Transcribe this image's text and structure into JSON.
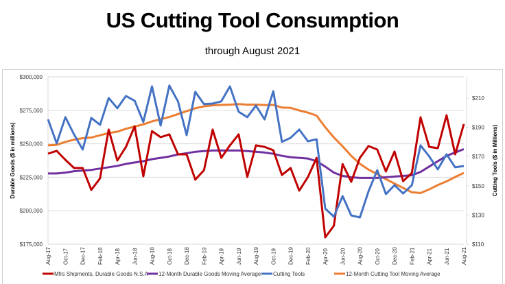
{
  "title": "US Cutting Tool Consumption",
  "subtitle": "through August 2021",
  "chart_data": {
    "type": "line",
    "x": [
      "Aug-17",
      "Sep-17",
      "Oct-17",
      "Nov-17",
      "Dec-17",
      "Jan-18",
      "Feb-18",
      "Mar-18",
      "Apr-18",
      "May-18",
      "Jun-18",
      "Jul-18",
      "Aug-18",
      "Sep-18",
      "Oct-18",
      "Nov-18",
      "Dec-18",
      "Jan-19",
      "Feb-19",
      "Mar-19",
      "Apr-19",
      "May-19",
      "Jun-19",
      "Jul-19",
      "Aug-19",
      "Sep-19",
      "Oct-19",
      "Nov-19",
      "Dec-19",
      "Jan-20",
      "Feb-20",
      "Mar-20",
      "Apr-20",
      "May-20",
      "Jun-20",
      "Jul-20",
      "Aug-20",
      "Sep-20",
      "Oct-20",
      "Nov-20",
      "Dec-20",
      "Jan-21",
      "Feb-21",
      "Mar-21",
      "Apr-21",
      "May-21",
      "Jun-21",
      "Jul-21",
      "Aug-21"
    ],
    "x_tick_labels": [
      "Aug-17",
      "Oct-17",
      "Dec-17",
      "Feb-18",
      "Apr-18",
      "Jun-18",
      "Aug-18",
      "Oct-18",
      "Dec-18",
      "Feb-19",
      "Apr-19",
      "Jun-19",
      "Aug-19",
      "Oct-19",
      "Dec-19",
      "Feb-20",
      "Apr-20",
      "Jun-20",
      "Aug-20",
      "Oct-20",
      "Dec-20",
      "Feb-21",
      "Apr-21",
      "Jun-21",
      "Aug-21"
    ],
    "ylabel_left": "Durable Goods ($ in millions)",
    "ylabel_right": "Cutting Tools ($ in Millions)",
    "ylim_left": [
      175000,
      300000
    ],
    "ylim_right": [
      110,
      224.5
    ],
    "yticks_left": [
      "$175,000",
      "$200,000",
      "$225,000",
      "$250,000",
      "$275,000",
      "$300,000"
    ],
    "yticks_left_values": [
      175000,
      200000,
      225000,
      250000,
      275000,
      300000
    ],
    "yticks_right": [
      "$110",
      "$130",
      "$150",
      "$170",
      "$190",
      "$210"
    ],
    "yticks_right_values": [
      110,
      130,
      150,
      170,
      190,
      210
    ],
    "grid": true,
    "legend_position": "bottom",
    "series": [
      {
        "name": "Mfrs Shipments, Durable Goods N.S.A",
        "axis": "left",
        "color": "#c00000",
        "values": [
          242600,
          244700,
          238000,
          231900,
          231900,
          215500,
          224200,
          260600,
          237500,
          247700,
          263100,
          225700,
          259500,
          254900,
          257000,
          242100,
          242100,
          223200,
          230300,
          260600,
          239500,
          248800,
          257000,
          225200,
          248800,
          247700,
          245200,
          226700,
          231900,
          215000,
          225200,
          239500,
          180100,
          188800,
          234900,
          221600,
          239500,
          248300,
          245700,
          229300,
          244200,
          222100,
          228300,
          269800,
          247700,
          246700,
          271300,
          242100,
          264700
        ]
      },
      {
        "name": "12-Month Durable Goods Moving Average",
        "axis": "left",
        "color": "#7030a0",
        "values": [
          227800,
          227800,
          228500,
          229500,
          230000,
          230500,
          231500,
          232500,
          233500,
          235000,
          236000,
          237000,
          238500,
          239500,
          240500,
          242000,
          243000,
          244000,
          244500,
          245000,
          245000,
          245000,
          245000,
          244500,
          244000,
          243500,
          242500,
          241000,
          240000,
          239500,
          239000,
          237000,
          233000,
          228500,
          226000,
          225000,
          224500,
          224500,
          224500,
          225000,
          225500,
          226000,
          226500,
          229000,
          233000,
          237000,
          241000,
          243500,
          246000
        ]
      },
      {
        "name": "Cutting Tools",
        "axis": "right",
        "color": "#4472c4",
        "values": [
          195.4,
          179,
          196.9,
          185.1,
          174.8,
          196.4,
          191.7,
          210,
          203,
          211.4,
          208.1,
          193.6,
          218,
          191.2,
          218.5,
          207.7,
          184.6,
          214.2,
          205.8,
          206.2,
          207.7,
          218,
          200.6,
          196.9,
          204.8,
          195.4,
          214.7,
          180,
          182.8,
          188.4,
          180.4,
          181.8,
          134.4,
          128.8,
          142.9,
          129.7,
          128.3,
          146.2,
          160.7,
          144.3,
          150.4,
          144.7,
          150.4,
          177.6,
          170.1,
          161.2,
          171.5,
          162.6,
          163.5
        ]
      },
      {
        "name": "12-Month Cutting Tool Moving Average",
        "axis": "right",
        "color": "#ed7d31",
        "values": [
          177.6,
          178,
          180,
          181.5,
          182.5,
          183,
          184.5,
          186,
          187,
          189,
          190.5,
          192,
          194,
          195.5,
          197,
          199,
          201,
          203,
          204.3,
          205,
          205.3,
          205.5,
          205.8,
          205.5,
          205.5,
          205.2,
          205.3,
          203.5,
          203.3,
          201.5,
          200,
          198,
          190,
          183,
          177,
          170.5,
          165,
          161,
          158,
          154.5,
          151.5,
          148.5,
          145.5,
          145,
          147.5,
          150.5,
          153,
          156,
          158.8
        ]
      }
    ]
  }
}
